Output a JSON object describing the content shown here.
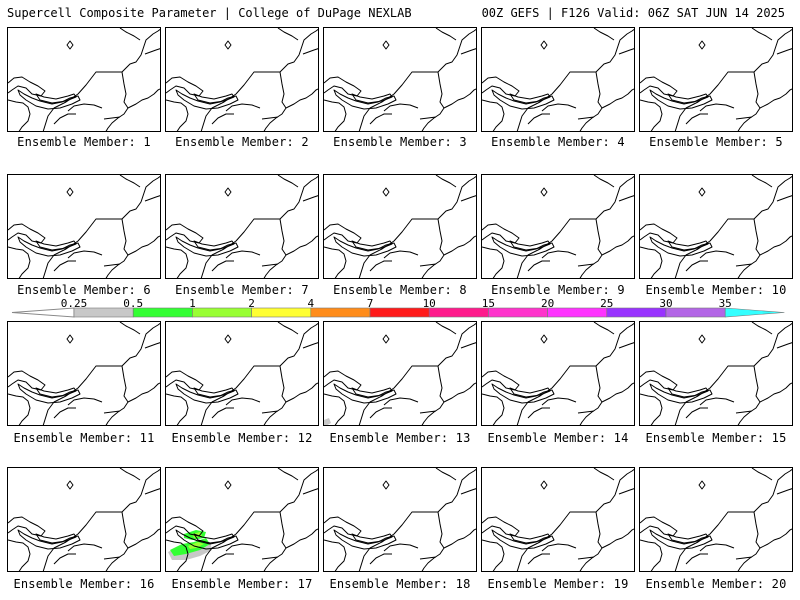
{
  "header": {
    "left": "Supercell Composite Parameter | College of DuPage NEXLAB",
    "right": "00Z GEFS | F126 Valid: 06Z SAT JUN 14 2025"
  },
  "caption_prefix": "Ensemble Member: ",
  "members": [
    {
      "id": 1,
      "caption": "Ensemble Member: 1"
    },
    {
      "id": 2,
      "caption": "Ensemble Member: 2"
    },
    {
      "id": 3,
      "caption": "Ensemble Member: 3"
    },
    {
      "id": 4,
      "caption": "Ensemble Member: 4"
    },
    {
      "id": 5,
      "caption": "Ensemble Member: 5"
    },
    {
      "id": 6,
      "caption": "Ensemble Member: 6"
    },
    {
      "id": 7,
      "caption": "Ensemble Member: 7"
    },
    {
      "id": 8,
      "caption": "Ensemble Member: 8"
    },
    {
      "id": 9,
      "caption": "Ensemble Member: 9"
    },
    {
      "id": 10,
      "caption": "Ensemble Member: 10"
    },
    {
      "id": 11,
      "caption": "Ensemble Member: 11"
    },
    {
      "id": 12,
      "caption": "Ensemble Member: 12"
    },
    {
      "id": 13,
      "caption": "Ensemble Member: 13"
    },
    {
      "id": 14,
      "caption": "Ensemble Member: 14"
    },
    {
      "id": 15,
      "caption": "Ensemble Member: 15"
    },
    {
      "id": 16,
      "caption": "Ensemble Member: 16"
    },
    {
      "id": 17,
      "caption": "Ensemble Member: 17"
    },
    {
      "id": 18,
      "caption": "Ensemble Member: 18"
    },
    {
      "id": 19,
      "caption": "Ensemble Member: 19"
    },
    {
      "id": 20,
      "caption": "Ensemble Member: 20"
    }
  ],
  "colorbar": {
    "thresholds": [
      "0.25",
      "0.5",
      "1",
      "2",
      "4",
      "7",
      "10",
      "15",
      "20",
      "25",
      "30",
      "35"
    ],
    "colors": [
      "#c8c8c8",
      "#33ff33",
      "#99ff33",
      "#ffff33",
      "#ff8c1a",
      "#ff1a1a",
      "#ff1a8c",
      "#ff33cc",
      "#ff33ff",
      "#9933ff",
      "#b366e6",
      "#33ffff"
    ]
  },
  "highlights": {
    "member_17": {
      "levels": [
        "0.25",
        "0.5",
        "1"
      ],
      "colors": [
        "#c8c8c8",
        "#33ff33",
        "#99ff33"
      ]
    },
    "member_13": {
      "levels": [
        "0.25"
      ],
      "colors": [
        "#c8c8c8"
      ]
    }
  }
}
